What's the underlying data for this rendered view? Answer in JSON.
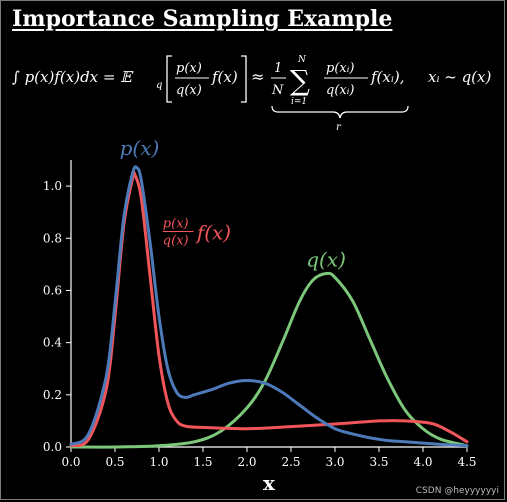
{
  "title": "Importance Sampling Example",
  "equation": {
    "lhs_integral": "∫ p(x)f(x)dx = 𝔼",
    "expect_sub": "q",
    "bracket_num": "p(x)",
    "bracket_den": "q(x)",
    "bracket_tail": "f(x)",
    "approx": "≈",
    "frac_one": "1",
    "frac_N": "N",
    "sum_top": "N",
    "sum_bottom": "i=1",
    "sum_num": "p(xᵢ)",
    "sum_den": "q(xᵢ)",
    "sum_tail": "f(xᵢ),",
    "sample": "xᵢ ~ q(x)",
    "brace_label": "r"
  },
  "watermark": "CSDN @heyyyyyyi",
  "colors": {
    "p": "#4d7ab8",
    "q": "#7cc77a",
    "ratio": "#f0555a",
    "axis": "#ffffff"
  },
  "chart_data": {
    "type": "line",
    "xlabel": "x",
    "ylabel": "",
    "xlim": [
      0.0,
      4.5
    ],
    "ylim": [
      0.0,
      1.1
    ],
    "xticks": [
      "0.0",
      "0.5",
      "1.0",
      "1.5",
      "2.0",
      "2.5",
      "3.0",
      "3.5",
      "4.0",
      "4.5"
    ],
    "yticks": [
      "0.0",
      "0.2",
      "0.4",
      "0.6",
      "0.8",
      "1.0"
    ],
    "grid": false,
    "series": [
      {
        "name": "p(x)",
        "color": "#4d7ab8",
        "x": [
          0.0,
          0.2,
          0.4,
          0.5,
          0.6,
          0.7,
          0.75,
          0.8,
          0.9,
          1.0,
          1.1,
          1.2,
          1.3,
          1.4,
          1.6,
          1.8,
          2.0,
          2.2,
          2.4,
          2.6,
          2.8,
          3.0,
          3.2,
          3.4,
          3.6,
          3.8,
          4.0,
          4.2,
          4.5
        ],
        "y": [
          0.01,
          0.05,
          0.27,
          0.55,
          0.88,
          1.05,
          1.07,
          1.02,
          0.78,
          0.5,
          0.3,
          0.21,
          0.19,
          0.2,
          0.22,
          0.245,
          0.255,
          0.245,
          0.21,
          0.16,
          0.11,
          0.07,
          0.05,
          0.035,
          0.025,
          0.02,
          0.015,
          0.01,
          0.005
        ]
      },
      {
        "name": "q(x)",
        "color": "#7cc77a",
        "x": [
          0.0,
          0.5,
          1.0,
          1.4,
          1.7,
          2.0,
          2.2,
          2.4,
          2.6,
          2.75,
          2.9,
          3.0,
          3.2,
          3.4,
          3.6,
          3.8,
          4.0,
          4.2,
          4.5
        ],
        "y": [
          0.0,
          0.0,
          0.005,
          0.02,
          0.06,
          0.15,
          0.25,
          0.4,
          0.56,
          0.64,
          0.665,
          0.65,
          0.56,
          0.41,
          0.26,
          0.14,
          0.07,
          0.03,
          0.005
        ]
      },
      {
        "name": "p(x)/q(x) f(x)",
        "color": "#f0555a",
        "x": [
          0.0,
          0.2,
          0.4,
          0.5,
          0.6,
          0.7,
          0.73,
          0.8,
          0.9,
          1.0,
          1.1,
          1.2,
          1.3,
          1.5,
          2.0,
          2.5,
          3.0,
          3.5,
          3.8,
          4.1,
          4.3,
          4.5
        ],
        "y": [
          0.005,
          0.03,
          0.22,
          0.5,
          0.85,
          1.03,
          1.04,
          0.95,
          0.65,
          0.35,
          0.17,
          0.1,
          0.08,
          0.075,
          0.07,
          0.078,
          0.088,
          0.1,
          0.1,
          0.09,
          0.06,
          0.02
        ]
      }
    ],
    "annotations": [
      {
        "text": "p(x)",
        "color": "#4d7ab8",
        "x": 0.78,
        "y": 1.15
      },
      {
        "text": "q(x)",
        "color": "#7cc77a",
        "x": 2.9,
        "y": 0.73
      },
      {
        "text": "p(x)/q(x) f(x)",
        "color": "#f0555a",
        "x": 1.1,
        "y": 0.83
      }
    ]
  }
}
